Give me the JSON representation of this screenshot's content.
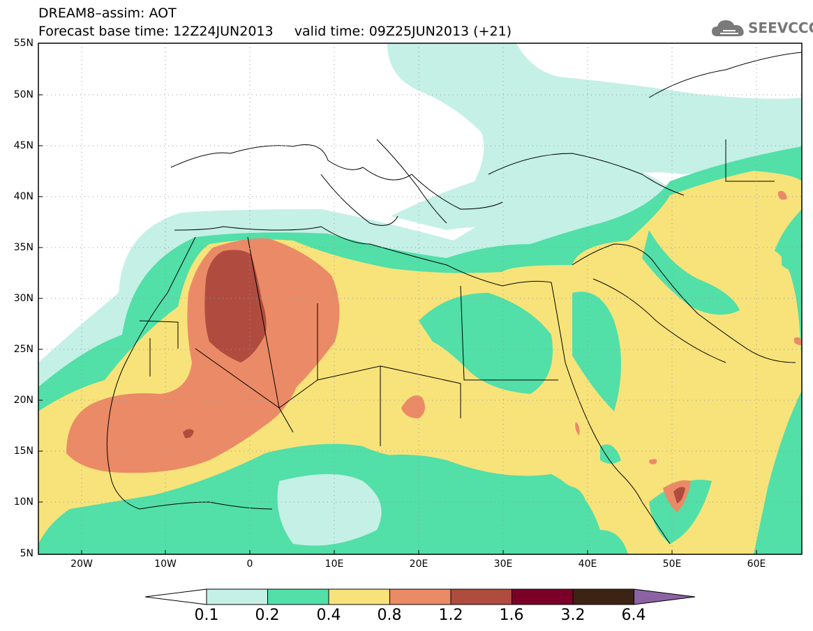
{
  "header": {
    "title_line1": "DREAM8–assim: AOT",
    "title_line2": "Forecast base time: 12Z24JUN2013     valid time: 09Z25JUN2013 (+21)"
  },
  "logo": {
    "text": "SEEVCCC",
    "icon": "cloud-icon"
  },
  "axes": {
    "lat_labels": [
      "55N",
      "50N",
      "45N",
      "40N",
      "35N",
      "30N",
      "25N",
      "20N",
      "15N",
      "10N",
      "5N"
    ],
    "lon_labels": [
      "20W",
      "10W",
      "0",
      "10E",
      "20E",
      "30E",
      "40E",
      "50E",
      "60E"
    ]
  },
  "colorbar": {
    "labels": [
      "0.1",
      "0.2",
      "0.4",
      "0.8",
      "1.2",
      "1.6",
      "3.2",
      "6.4"
    ],
    "colors": [
      "#ffffff",
      "#c4f0e6",
      "#52dfa8",
      "#f7e37a",
      "#eb8a66",
      "#b04c3f",
      "#7b0028",
      "#3d2314",
      "#8b63a3"
    ]
  },
  "field_colors": {
    "very_low": "#c4f0e6",
    "low": "#52dfa8",
    "moderate": "#f7e37a",
    "high": "#eb8a66",
    "very_high": "#b04c3f"
  }
}
